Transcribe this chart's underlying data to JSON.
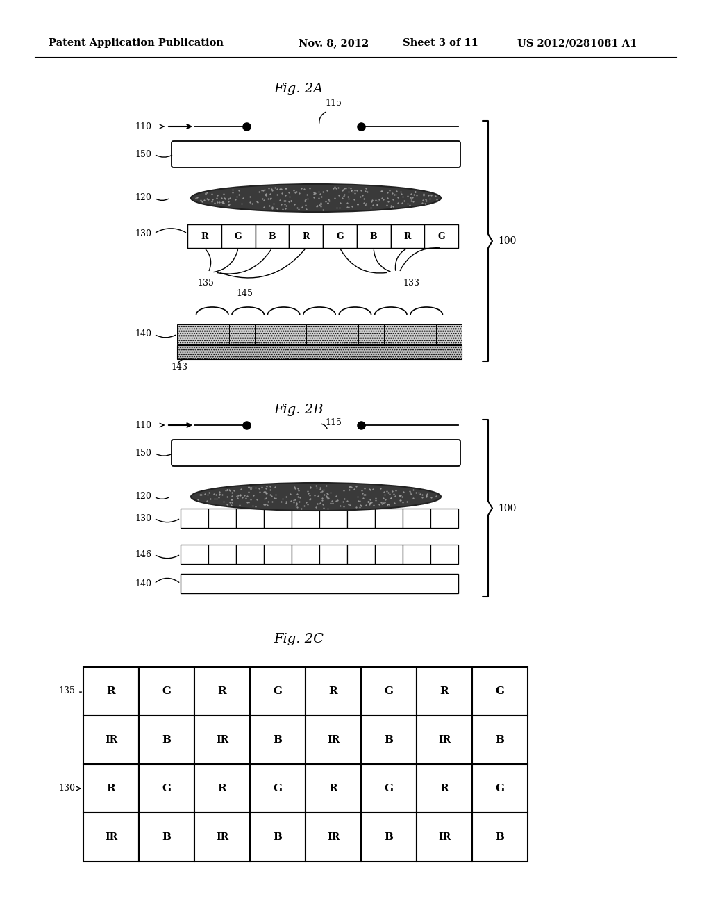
{
  "header_left": "Patent Application Publication",
  "header_mid": "Nov. 8, 2012   Sheet 3 of 11",
  "header_right": "US 2012/0281081 A1",
  "fig2a_title": "Fig. 2A",
  "fig2b_title": "Fig. 2B",
  "fig2c_title": "Fig. 2C",
  "bg_color": "#ffffff",
  "line_color": "#000000",
  "rgb_cells_2a": [
    "R",
    "G",
    "B",
    "R",
    "G",
    "B",
    "R",
    "G"
  ],
  "pixel_grid_2c_row1": [
    "R",
    "G",
    "R",
    "G",
    "R",
    "G",
    "R",
    "G"
  ],
  "pixel_grid_2c_row2": [
    "IR",
    "B",
    "IR",
    "B",
    "IR",
    "B",
    "IR",
    "B"
  ],
  "pixel_grid_2c_row3": [
    "R",
    "G",
    "R",
    "G",
    "R",
    "G",
    "R",
    "G"
  ],
  "pixel_grid_2c_row4": [
    "IR",
    "B",
    "IR",
    "B",
    "IR",
    "B",
    "IR",
    "B"
  ]
}
